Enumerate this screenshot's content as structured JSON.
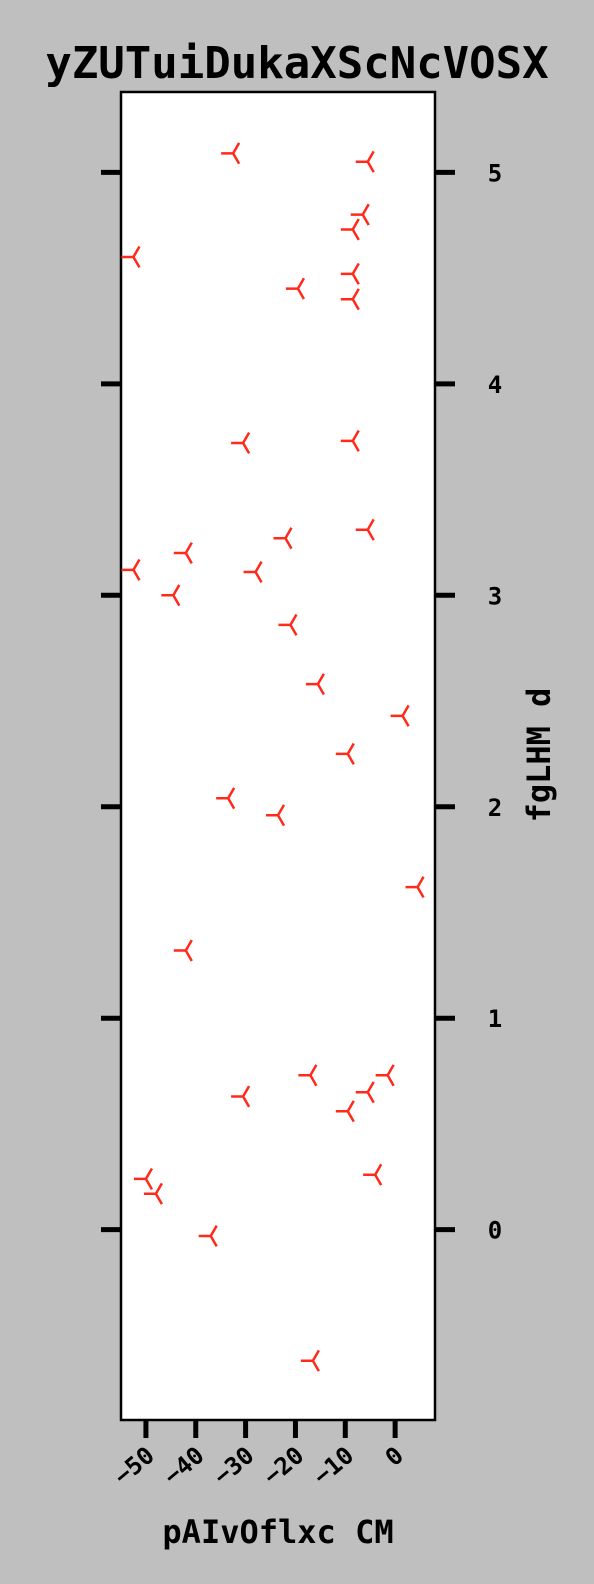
{
  "chart_data": {
    "type": "scatter",
    "title": "yZUTuiDukaXScNcVOSX",
    "xlabel": "pAIvOflxc CM",
    "ylabel": "fgLHM d",
    "marker": "tri-left",
    "color": "#ff2a1a",
    "xlim": [
      -55,
      8
    ],
    "ylim": [
      -0.9,
      5.38
    ],
    "xticks": [
      -50,
      -40,
      -30,
      -20,
      -10,
      0
    ],
    "xtick_labels": [
      "−50",
      "−40",
      "−30",
      "−20",
      "−10",
      "0"
    ],
    "yticks": [
      0,
      1,
      2,
      3,
      4,
      5
    ],
    "ytick_labels": [
      "0",
      "1",
      "2",
      "3",
      "4",
      "5"
    ],
    "y_axis_side": "right",
    "grid": false,
    "points": [
      {
        "x": -32.5,
        "y": 5.09
      },
      {
        "x": -5.5,
        "y": 5.05
      },
      {
        "x": -6.5,
        "y": 4.8
      },
      {
        "x": -8.5,
        "y": 4.73
      },
      {
        "x": -52.5,
        "y": 4.6
      },
      {
        "x": -19.5,
        "y": 4.45
      },
      {
        "x": -8.5,
        "y": 4.52
      },
      {
        "x": -8.5,
        "y": 4.4
      },
      {
        "x": -30.5,
        "y": 3.72
      },
      {
        "x": -8.5,
        "y": 3.73
      },
      {
        "x": -5.5,
        "y": 3.31
      },
      {
        "x": -22.0,
        "y": 3.27
      },
      {
        "x": -42.0,
        "y": 3.2
      },
      {
        "x": -52.5,
        "y": 3.12
      },
      {
        "x": -28.0,
        "y": 3.11
      },
      {
        "x": -44.5,
        "y": 3.0
      },
      {
        "x": -21.0,
        "y": 2.86
      },
      {
        "x": -15.5,
        "y": 2.58
      },
      {
        "x": 1.5,
        "y": 2.43
      },
      {
        "x": -9.5,
        "y": 2.25
      },
      {
        "x": -33.5,
        "y": 2.04
      },
      {
        "x": -23.5,
        "y": 1.96
      },
      {
        "x": 4.5,
        "y": 1.62
      },
      {
        "x": -42.0,
        "y": 1.32
      },
      {
        "x": -17.0,
        "y": 0.73
      },
      {
        "x": -1.5,
        "y": 0.73
      },
      {
        "x": -5.5,
        "y": 0.65
      },
      {
        "x": -30.5,
        "y": 0.63
      },
      {
        "x": -9.5,
        "y": 0.56
      },
      {
        "x": -4.0,
        "y": 0.26
      },
      {
        "x": -50.0,
        "y": 0.24
      },
      {
        "x": -48.0,
        "y": 0.17
      },
      {
        "x": -37.0,
        "y": -0.03
      },
      {
        "x": -16.5,
        "y": -0.62
      }
    ]
  }
}
